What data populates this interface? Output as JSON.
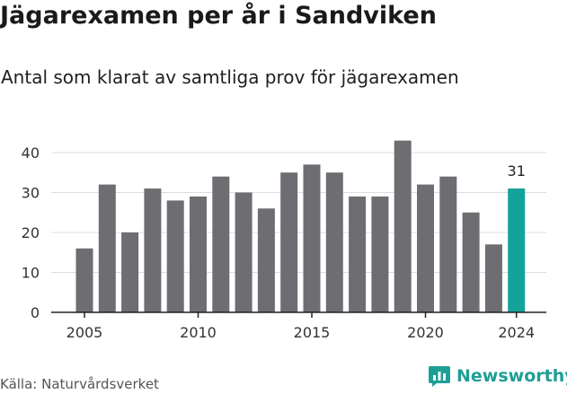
{
  "title": "Jägarexamen per år i Sandviken",
  "subtitle": "Antal som klarat av samtliga prov för jägarexamen",
  "source": "Källa: Naturvårdsverket",
  "brand": {
    "name": "Newsworthy",
    "color": "#1f9e95"
  },
  "colors": {
    "bar": "#6e6d71",
    "highlight": "#14a39a",
    "grid": "#dddddd",
    "axis": "#222222"
  },
  "chart_data": {
    "type": "bar",
    "x": [
      2005,
      2006,
      2007,
      2008,
      2009,
      2010,
      2011,
      2012,
      2013,
      2014,
      2015,
      2016,
      2017,
      2018,
      2019,
      2020,
      2021,
      2022,
      2023,
      2024
    ],
    "values": [
      16,
      32,
      20,
      31,
      28,
      29,
      34,
      30,
      26,
      35,
      37,
      35,
      29,
      29,
      43,
      32,
      34,
      25,
      17,
      31
    ],
    "highlight": {
      "x": 2024,
      "label": "31"
    },
    "xticks": [
      "2005",
      "2010",
      "2015",
      "2020",
      "2024"
    ],
    "yticks": [
      "0",
      "10",
      "20",
      "30",
      "40"
    ],
    "ylim": [
      0,
      45
    ],
    "grid": true,
    "xlabel": "",
    "ylabel": ""
  }
}
